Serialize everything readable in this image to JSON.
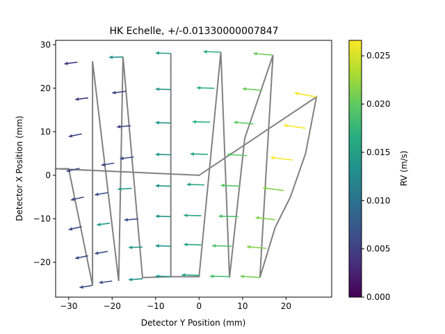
{
  "chart_data": {
    "type": "quiver",
    "title": "HK Echelle, +/-0.01330000007847",
    "xlabel": "Detector Y Position (mm)",
    "ylabel": "Detector X Position (mm)",
    "xlim": [
      -33,
      30.5
    ],
    "ylim": [
      -28,
      31
    ],
    "xticks": [
      -30,
      -20,
      -10,
      0,
      10,
      20
    ],
    "yticks": [
      -20,
      -10,
      0,
      10,
      20,
      30
    ],
    "grid": false,
    "colorbar": {
      "label": "RV (m/s)",
      "range": [
        0.0,
        0.0266
      ],
      "ticks": [
        "0.000",
        "0.005",
        "0.010",
        "0.015",
        "0.020",
        "0.025"
      ],
      "tick_values": [
        0.0,
        0.005,
        0.01,
        0.015,
        0.02,
        0.025
      ],
      "colormap": "viridis"
    },
    "outline_path": [
      [
        -24.5,
        -25.3
      ],
      [
        -30,
        1.5
      ],
      [
        -33,
        1.5
      ],
      [
        0,
        0
      ],
      [
        27,
        18
      ],
      [
        24.5,
        5
      ],
      [
        21,
        -5
      ],
      [
        17.5,
        -12
      ],
      [
        14,
        -23.5
      ],
      [
        17,
        27.6
      ],
      [
        10.5,
        8.5
      ],
      [
        7,
        -23.5
      ],
      [
        5,
        28.3
      ],
      [
        0,
        -23.3
      ],
      [
        -6.5,
        -23.3
      ],
      [
        -6.5,
        28
      ],
      [
        -6.5,
        -23.3
      ],
      [
        -13,
        -23.5
      ],
      [
        -17.5,
        27.2
      ],
      [
        -18.5,
        -24.3
      ],
      [
        -24.5,
        26.2
      ],
      [
        -24.5,
        -25.3
      ]
    ],
    "vectors": [
      {
        "x": -28,
        "y": 26,
        "dx": -3,
        "dy": -0.4,
        "rv": 0.0045
      },
      {
        "x": -25.5,
        "y": 17.8,
        "dx": -3,
        "dy": -0.4,
        "rv": 0.0045
      },
      {
        "x": -27,
        "y": 9.5,
        "dx": -3,
        "dy": -0.6,
        "rv": 0.0055
      },
      {
        "x": -27.5,
        "y": 1.6,
        "dx": -3,
        "dy": -0.7,
        "rv": 0.0055
      },
      {
        "x": -26.5,
        "y": -5,
        "dx": -3,
        "dy": -0.7,
        "rv": 0.0055
      },
      {
        "x": -27,
        "y": -11.8,
        "dx": -3,
        "dy": -0.7,
        "rv": 0.006
      },
      {
        "x": -25.5,
        "y": -18.5,
        "dx": -3,
        "dy": -0.6,
        "rv": 0.006
      },
      {
        "x": -24.5,
        "y": -25.3,
        "dx": -3,
        "dy": -0.5,
        "rv": 0.006
      },
      {
        "x": -17.5,
        "y": 27.2,
        "dx": -3.2,
        "dy": -0.1,
        "rv": 0.0135
      },
      {
        "x": -16.8,
        "y": 19.3,
        "dx": -3.2,
        "dy": -0.4,
        "rv": 0.0055
      },
      {
        "x": -15.7,
        "y": 11.4,
        "dx": -3.2,
        "dy": -0.3,
        "rv": 0.0055
      },
      {
        "x": -15,
        "y": 4.2,
        "dx": -3.2,
        "dy": -0.4,
        "rv": 0.006
      },
      {
        "x": -19.5,
        "y": 2.8,
        "dx": -3,
        "dy": -0.5,
        "rv": 0.006
      },
      {
        "x": -21,
        "y": -4,
        "dx": -3,
        "dy": -0.5,
        "rv": 0.0065
      },
      {
        "x": -15.5,
        "y": -3,
        "dx": -3.2,
        "dy": -0.2,
        "rv": 0.0145
      },
      {
        "x": -20.5,
        "y": -11,
        "dx": -3,
        "dy": -0.4,
        "rv": 0.0145
      },
      {
        "x": -14,
        "y": -10,
        "dx": -3.2,
        "dy": -0.3,
        "rv": 0.0065
      },
      {
        "x": -21,
        "y": -17.5,
        "dx": -3,
        "dy": -0.5,
        "rv": 0.0065
      },
      {
        "x": -13,
        "y": -16.5,
        "dx": -3.2,
        "dy": -0.1,
        "rv": 0.0145
      },
      {
        "x": -20,
        "y": -24.3,
        "dx": -3,
        "dy": -0.4,
        "rv": 0.0065
      },
      {
        "x": -13,
        "y": -23.8,
        "dx": -3.2,
        "dy": -0.2,
        "rv": 0.0135
      },
      {
        "x": -6.5,
        "y": 28,
        "dx": -3.5,
        "dy": 0.1,
        "rv": 0.0145
      },
      {
        "x": -6.5,
        "y": 19.7,
        "dx": -3.5,
        "dy": 0.1,
        "rv": 0.014
      },
      {
        "x": -6.5,
        "y": 12,
        "dx": -3.5,
        "dy": 0.1,
        "rv": 0.0135
      },
      {
        "x": -6.5,
        "y": 4.7,
        "dx": -3.5,
        "dy": 0.1,
        "rv": 0.0135
      },
      {
        "x": -6.5,
        "y": -2.5,
        "dx": -3.5,
        "dy": 0.1,
        "rv": 0.0135
      },
      {
        "x": -6.5,
        "y": -9.5,
        "dx": -3.5,
        "dy": 0.1,
        "rv": 0.0135
      },
      {
        "x": -6.5,
        "y": -16.3,
        "dx": -3.5,
        "dy": 0.1,
        "rv": 0.0135
      },
      {
        "x": -6.5,
        "y": -23.3,
        "dx": -3.5,
        "dy": 0.1,
        "rv": 0.0135
      },
      {
        "x": 5,
        "y": 28.3,
        "dx": -4,
        "dy": 0.1,
        "rv": 0.0165
      },
      {
        "x": 3.5,
        "y": 20,
        "dx": -4,
        "dy": 0.1,
        "rv": 0.0165
      },
      {
        "x": 2.5,
        "y": 12.2,
        "dx": -4,
        "dy": 0.1,
        "rv": 0.0165
      },
      {
        "x": 2,
        "y": 4.8,
        "dx": -4,
        "dy": 0.1,
        "rv": 0.0155
      },
      {
        "x": 1.2,
        "y": -2.2,
        "dx": -4,
        "dy": 0.1,
        "rv": 0.0155
      },
      {
        "x": 0.5,
        "y": -9.3,
        "dx": -4,
        "dy": 0.1,
        "rv": 0.0155
      },
      {
        "x": 0.5,
        "y": -16,
        "dx": -4,
        "dy": 0.1,
        "rv": 0.0155
      },
      {
        "x": 0,
        "y": -23,
        "dx": -4,
        "dy": 0.1,
        "rv": 0.0155
      },
      {
        "x": 17,
        "y": 27.6,
        "dx": -4.5,
        "dy": 0.4,
        "rv": 0.0205
      },
      {
        "x": 14.5,
        "y": 19.5,
        "dx": -4.5,
        "dy": 0.4,
        "rv": 0.0205
      },
      {
        "x": 12.5,
        "y": 11.8,
        "dx": -4.5,
        "dy": 0.4,
        "rv": 0.02
      },
      {
        "x": 11,
        "y": 4.5,
        "dx": -4.5,
        "dy": 0.3,
        "rv": 0.0195
      },
      {
        "x": 9.5,
        "y": -2.5,
        "dx": -4.5,
        "dy": 0.2,
        "rv": 0.0195
      },
      {
        "x": 9,
        "y": -9.5,
        "dx": -4.5,
        "dy": 0.1,
        "rv": 0.019
      },
      {
        "x": 7.5,
        "y": -16.3,
        "dx": -4.5,
        "dy": 0.1,
        "rv": 0.019
      },
      {
        "x": 7,
        "y": -23.3,
        "dx": -4.5,
        "dy": 0.1,
        "rv": 0.0185
      },
      {
        "x": 27,
        "y": 18,
        "dx": -5,
        "dy": 0.9,
        "rv": 0.0265
      },
      {
        "x": 24.5,
        "y": 10.8,
        "dx": -5,
        "dy": 0.7,
        "rv": 0.0265
      },
      {
        "x": 21.5,
        "y": 3.5,
        "dx": -5,
        "dy": 0.6,
        "rv": 0.0265
      },
      {
        "x": 19.5,
        "y": -3.5,
        "dx": -4.8,
        "dy": 0.6,
        "rv": 0.0215
      },
      {
        "x": 17.5,
        "y": -10.2,
        "dx": -4.5,
        "dy": 0.5,
        "rv": 0.0215
      },
      {
        "x": 15.5,
        "y": -16.8,
        "dx": -4.5,
        "dy": 0.4,
        "rv": 0.0215
      },
      {
        "x": 14,
        "y": -23.5,
        "dx": -4.5,
        "dy": 0.3,
        "rv": 0.021
      }
    ]
  }
}
